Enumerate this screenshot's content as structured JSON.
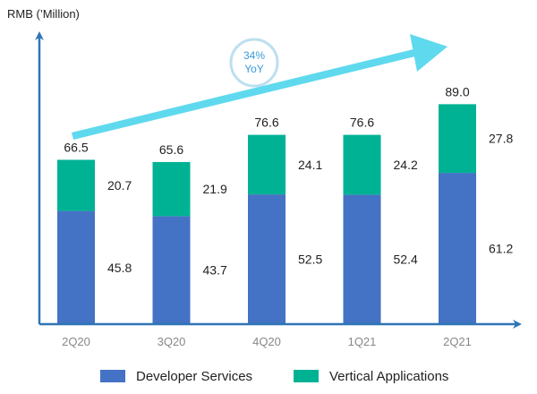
{
  "chart_data": {
    "type": "bar",
    "stacked": true,
    "ylabel": "RMB (’Million)",
    "categories": [
      "2Q20",
      "3Q20",
      "4Q20",
      "1Q21",
      "2Q21"
    ],
    "series": [
      {
        "name": "Developer Services",
        "values": [
          45.8,
          43.7,
          52.5,
          52.4,
          61.2
        ],
        "color": "#4472c4"
      },
      {
        "name": "Vertical Applications",
        "values": [
          20.7,
          21.9,
          24.1,
          24.2,
          27.8
        ],
        "color": "#00b294"
      }
    ],
    "totals": [
      66.5,
      65.6,
      76.6,
      76.6,
      89.0
    ],
    "totals_labels": [
      "66.5",
      "65.6",
      "76.6",
      "76.6",
      "89.0"
    ],
    "series_labels": [
      [
        "45.8",
        "43.7",
        "52.5",
        "52.4",
        "61.2"
      ],
      [
        "20.7",
        "21.9",
        "24.1",
        "24.2",
        "27.8"
      ]
    ],
    "ylim": [
      0,
      100
    ],
    "grid": false,
    "legend_position": "bottom",
    "annotation": {
      "line1": "34%",
      "line2": "YoY"
    },
    "colors": {
      "axis": "#2e75b6",
      "arrow": "#5fd9ee",
      "badge_border": "#bcdff0",
      "badge_text": "#3a9ad9",
      "tick": "#888888"
    }
  }
}
